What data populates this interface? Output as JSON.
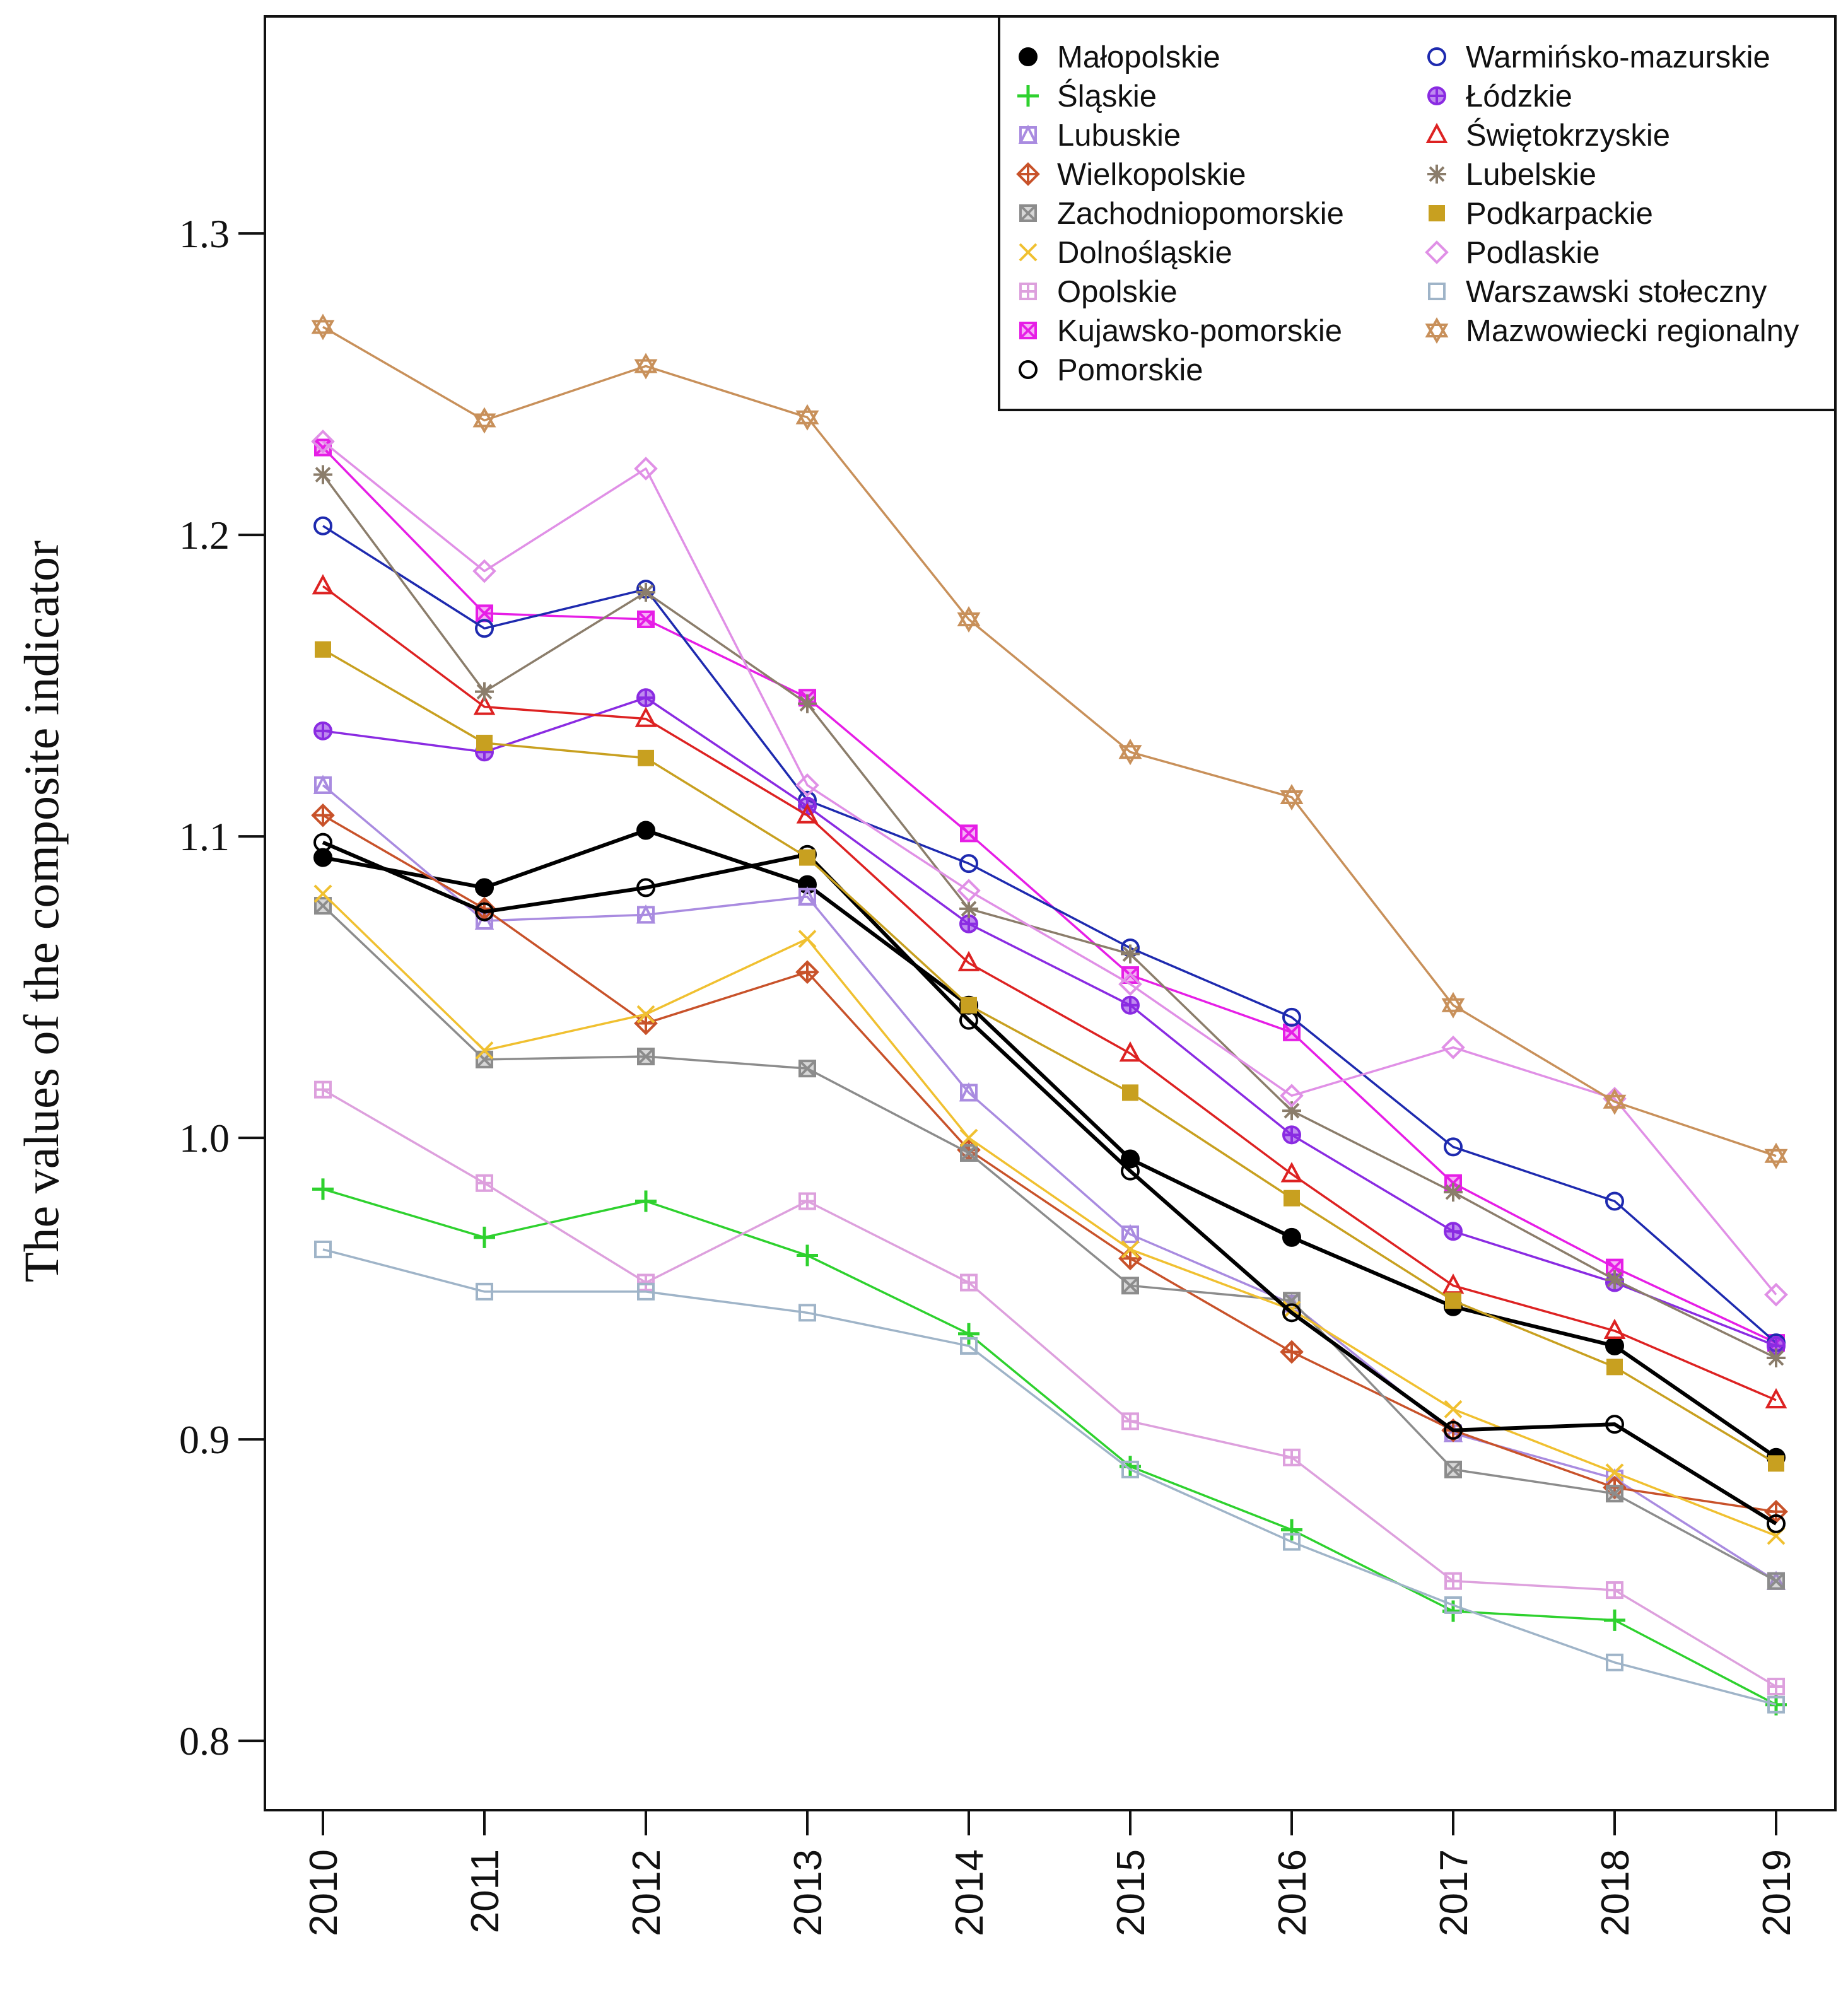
{
  "chart_data": {
    "type": "line",
    "title": "",
    "xlabel": "",
    "ylabel": "The values of the composite indicator",
    "x": [
      2010,
      2011,
      2012,
      2013,
      2014,
      2015,
      2016,
      2017,
      2018,
      2019
    ],
    "x_tick_labels": [
      "2010",
      "2011",
      "2012",
      "2013",
      "2014",
      "2015",
      "2016",
      "2017",
      "2018",
      "2019"
    ],
    "y_ticks": [
      0.8,
      0.9,
      1.0,
      1.1,
      1.2,
      1.3
    ],
    "y_tick_labels": [
      "0.8",
      "0.9",
      "1.0",
      "1.1",
      "1.2",
      "1.3"
    ],
    "ylim": [
      0.777,
      1.372
    ],
    "grid": false,
    "legend_position": "top-right",
    "series": [
      {
        "name": "Małopolskie",
        "color": "#000000",
        "marker": "filled-circle",
        "values": [
          1.093,
          1.083,
          1.102,
          1.084,
          1.044,
          0.993,
          0.967,
          0.944,
          0.931,
          0.894
        ]
      },
      {
        "name": "Śląskie",
        "color": "#2ED12E",
        "marker": "plus",
        "values": [
          0.983,
          0.967,
          0.979,
          0.961,
          0.935,
          0.891,
          0.87,
          0.843,
          0.84,
          0.812
        ]
      },
      {
        "name": "Lubuskie",
        "color": "#A98BE0",
        "marker": "triangle-square",
        "values": [
          1.117,
          1.072,
          1.074,
          1.08,
          1.015,
          0.968,
          0.945,
          0.902,
          0.887,
          0.853
        ]
      },
      {
        "name": "Wielkopolskie",
        "color": "#C8522A",
        "marker": "diamond-plus",
        "values": [
          1.107,
          1.076,
          1.038,
          1.055,
          0.996,
          0.96,
          0.929,
          0.903,
          0.884,
          0.876
        ]
      },
      {
        "name": "Zachodniopomorskie",
        "color": "#8C8C8C",
        "marker": "square-x",
        "values": [
          1.077,
          1.026,
          1.027,
          1.023,
          0.995,
          0.951,
          0.946,
          0.89,
          0.882,
          0.853
        ]
      },
      {
        "name": "Dolnośląskie",
        "color": "#F0C030",
        "marker": "x",
        "values": [
          1.081,
          1.029,
          1.041,
          1.066,
          1.0,
          0.963,
          0.943,
          0.91,
          0.889,
          0.868
        ]
      },
      {
        "name": "Opolskie",
        "color": "#DDA0DD",
        "marker": "square-plus",
        "values": [
          1.016,
          0.985,
          0.952,
          0.979,
          0.952,
          0.906,
          0.894,
          0.853,
          0.85,
          0.818
        ]
      },
      {
        "name": "Kujawsko-pomorskie",
        "color": "#E61EE6",
        "marker": "square-x",
        "values": [
          1.229,
          1.174,
          1.172,
          1.146,
          1.101,
          1.054,
          1.035,
          0.985,
          0.957,
          0.932
        ]
      },
      {
        "name": "Pomorskie",
        "color": "#000000",
        "marker": "open-circle",
        "values": [
          1.098,
          1.075,
          1.083,
          1.094,
          1.039,
          0.989,
          0.942,
          0.903,
          0.905,
          0.872
        ]
      },
      {
        "name": "Warmińsko-mazurskie",
        "color": "#1E2AAF",
        "marker": "open-circle",
        "values": [
          1.203,
          1.169,
          1.182,
          1.112,
          1.091,
          1.063,
          1.04,
          0.997,
          0.979,
          0.932
        ]
      },
      {
        "name": "Łódzkie",
        "color": "#8A2BE2",
        "marker": "circle-plus",
        "values": [
          1.135,
          1.128,
          1.146,
          1.11,
          1.071,
          1.044,
          1.001,
          0.969,
          0.952,
          0.931
        ]
      },
      {
        "name": "Świętokrzyskie",
        "color": "#DD2222",
        "marker": "open-triangle",
        "values": [
          1.183,
          1.143,
          1.139,
          1.107,
          1.058,
          1.028,
          0.988,
          0.951,
          0.936,
          0.913
        ]
      },
      {
        "name": "Lubelskie",
        "color": "#8B7D6B",
        "marker": "asterisk",
        "values": [
          1.22,
          1.148,
          1.181,
          1.144,
          1.076,
          1.061,
          1.009,
          0.982,
          0.953,
          0.927
        ]
      },
      {
        "name": "Podkarpackie",
        "color": "#C8A020",
        "marker": "filled-square",
        "values": [
          1.162,
          1.131,
          1.126,
          1.093,
          1.044,
          1.015,
          0.98,
          0.946,
          0.924,
          0.892
        ]
      },
      {
        "name": "Podlaskie",
        "color": "#E090E6",
        "marker": "open-diamond",
        "values": [
          1.231,
          1.188,
          1.222,
          1.117,
          1.082,
          1.051,
          1.014,
          1.03,
          1.013,
          0.948
        ]
      },
      {
        "name": "Warszawski stołeczny",
        "color": "#9FB4C8",
        "marker": "open-square",
        "values": [
          0.963,
          0.949,
          0.949,
          0.942,
          0.931,
          0.89,
          0.866,
          0.845,
          0.826,
          0.812
        ]
      },
      {
        "name": "Mazwowiecki regionalny",
        "color": "#C8905A",
        "marker": "star-of-david",
        "values": [
          1.269,
          1.238,
          1.256,
          1.239,
          1.172,
          1.128,
          1.113,
          1.044,
          1.012,
          0.994
        ]
      }
    ]
  }
}
